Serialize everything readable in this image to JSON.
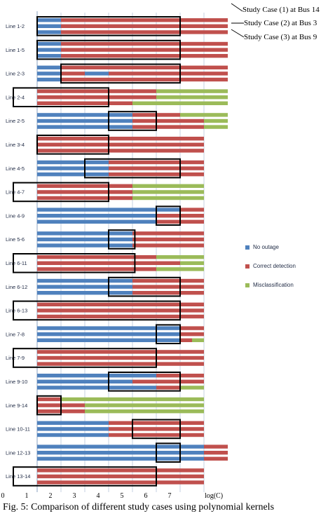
{
  "chart_data": {
    "type": "bar",
    "orientation": "horizontal",
    "stacked_rows_per_category": 3,
    "categories": [
      "Line 1-2",
      "Line 1-5",
      "Line 2-3",
      "Line 2-4",
      "Line 2-5",
      "Line 3-4",
      "Line 4-5",
      "Line 4-7",
      "Line 4-9",
      "Line 5-6",
      "Line 6-11",
      "Line 6-12",
      "Line 6-13",
      "Line 7-8",
      "Line 7-9",
      "Line 9-10",
      "Line 9-14",
      "Line 10-11",
      "Line 12-13",
      "Line 13-14"
    ],
    "xlabel": "log(C)",
    "ylabel": "",
    "xlim": [
      0,
      8
    ],
    "xticks": [
      "0",
      "1",
      "2",
      "3",
      "4",
      "5",
      "6",
      "7",
      "log(C)"
    ],
    "legend_position": "right",
    "series": [
      {
        "name": "No outage",
        "color": "#4f81bd"
      },
      {
        "name": "Correct detection",
        "color": "#c0504d"
      },
      {
        "name": "Misclassification",
        "color": "#9bbb59"
      }
    ],
    "rows": [
      {
        "cases": [
          {
            "blue": 1,
            "red": 7,
            "green": 0
          },
          {
            "blue": 1,
            "red": 7,
            "green": 0
          },
          {
            "blue": 1,
            "red": 7,
            "green": 0
          }
        ],
        "box": [
          2,
          8
        ]
      },
      {
        "cases": [
          {
            "blue": 1,
            "red": 7,
            "green": 0
          },
          {
            "blue": 1,
            "red": 7,
            "green": 0
          },
          {
            "blue": 1,
            "red": 7,
            "green": 0
          }
        ],
        "box": [
          2,
          8
        ]
      },
      {
        "cases": [
          {
            "blue": 1,
            "red": 7,
            "green": 0
          },
          {
            "blue": 1,
            "red": 1,
            "green": 0,
            "blue2": 1,
            "red2": 5
          },
          {
            "blue": 1,
            "red": 7,
            "green": 0
          }
        ],
        "box": [
          3,
          8
        ]
      },
      {
        "cases": [
          {
            "blue": 0,
            "red": 5,
            "green": 3
          },
          {
            "blue": 0,
            "red": 5,
            "green": 3
          },
          {
            "blue": 0,
            "red": 4,
            "green": 4
          }
        ],
        "box": [
          1,
          5
        ]
      },
      {
        "cases": [
          {
            "blue": 4,
            "red": 2,
            "green": 2
          },
          {
            "blue": 4,
            "red": 3,
            "green": 1
          },
          {
            "blue": 4,
            "red": 3,
            "green": 1
          }
        ],
        "box": [
          5,
          7
        ]
      },
      {
        "cases": [
          {
            "blue": 0,
            "red": 7,
            "green": 0
          },
          {
            "blue": 0,
            "red": 7,
            "green": 0
          },
          {
            "blue": 0,
            "red": 7,
            "green": 0
          }
        ],
        "box": [
          2,
          5
        ]
      },
      {
        "cases": [
          {
            "blue": 3,
            "red": 4,
            "green": 0
          },
          {
            "blue": 3,
            "red": 4,
            "green": 0
          },
          {
            "blue": 3,
            "red": 4,
            "green": 0
          }
        ],
        "box": [
          4,
          8
        ]
      },
      {
        "cases": [
          {
            "blue": 0,
            "red": 4,
            "green": 3
          },
          {
            "blue": 0,
            "red": 4,
            "green": 3
          },
          {
            "blue": 0,
            "red": 4,
            "green": 3
          }
        ],
        "box": [
          1,
          5
        ]
      },
      {
        "cases": [
          {
            "blue": 6,
            "red": 1,
            "green": 0
          },
          {
            "blue": 5,
            "red": 2,
            "green": 0
          },
          {
            "blue": 5,
            "red": 2,
            "green": 0
          }
        ],
        "box": [
          7,
          8
        ]
      },
      {
        "cases": [
          {
            "blue": 4,
            "red": 3,
            "green": 0
          },
          {
            "blue": 4,
            "red": 3,
            "green": 0
          },
          {
            "blue": 4,
            "red": 3,
            "green": 0
          }
        ],
        "box": [
          5,
          6.1
        ]
      },
      {
        "cases": [
          {
            "blue": 0,
            "red": 5,
            "green": 2
          },
          {
            "blue": 0,
            "red": 6,
            "green": 1
          },
          {
            "blue": 0,
            "red": 5,
            "green": 2
          }
        ],
        "box": [
          1,
          6.1
        ]
      },
      {
        "cases": [
          {
            "blue": 4,
            "red": 3,
            "green": 0
          },
          {
            "blue": 4,
            "red": 3,
            "green": 0
          },
          {
            "blue": 4,
            "red": 3,
            "green": 0
          }
        ],
        "box": [
          5,
          8
        ]
      },
      {
        "cases": [
          {
            "blue": 0,
            "red": 7,
            "green": 0
          },
          {
            "blue": 0,
            "red": 7,
            "green": 0
          },
          {
            "blue": 0,
            "red": 7,
            "green": 0
          }
        ],
        "box": [
          1,
          8
        ]
      },
      {
        "cases": [
          {
            "blue": 6,
            "red": 1,
            "green": 0
          },
          {
            "blue": 6,
            "red": 1,
            "green": 0
          },
          {
            "blue": 6,
            "red": 0.5,
            "green": 0.5
          }
        ],
        "box": [
          7,
          8
        ]
      },
      {
        "cases": [
          {
            "blue": 0,
            "red": 7,
            "green": 0
          },
          {
            "blue": 0,
            "red": 7,
            "green": 0
          },
          {
            "blue": 0,
            "red": 7,
            "green": 0
          }
        ],
        "box": [
          1,
          7
        ]
      },
      {
        "cases": [
          {
            "blue": 5,
            "red": 2,
            "green": 0
          },
          {
            "blue": 4,
            "red": 3,
            "green": 0
          },
          {
            "blue": 5,
            "red": 1,
            "green": 1
          }
        ],
        "box": [
          5,
          8
        ]
      },
      {
        "cases": [
          {
            "blue": 0,
            "red": 1,
            "green": 6
          },
          {
            "blue": 0,
            "red": 2,
            "green": 5
          },
          {
            "blue": 0,
            "red": 2,
            "green": 5
          }
        ],
        "box": [
          2,
          3
        ]
      },
      {
        "cases": [
          {
            "blue": 3,
            "red": 4,
            "green": 0
          },
          {
            "blue": 3,
            "red": 4,
            "green": 0
          },
          {
            "blue": 3,
            "red": 4,
            "green": 0
          }
        ],
        "box": [
          6,
          8
        ]
      },
      {
        "cases": [
          {
            "blue": 7,
            "red": 1,
            "green": 0
          },
          {
            "blue": 7,
            "red": 1,
            "green": 0
          },
          {
            "blue": 7,
            "red": 1,
            "green": 0
          }
        ],
        "box": [
          7,
          8
        ]
      },
      {
        "cases": [
          {
            "blue": 0,
            "red": 7,
            "green": 0
          },
          {
            "blue": 0,
            "red": 7,
            "green": 0
          },
          {
            "blue": 0,
            "red": 7,
            "green": 0
          }
        ],
        "box": [
          1,
          7
        ]
      }
    ],
    "annotations": [
      "Study Case (1) at Bus 14",
      "Study Case (2) at Bus 3",
      "Study Case (3) at Bus 9"
    ]
  },
  "caption": "Fig. 5: Comparison of different study cases using polynomial kernels",
  "colors": {
    "blue": "#4f81bd",
    "red": "#c0504d",
    "green": "#9bbb59",
    "grid": "#9db4cf"
  }
}
